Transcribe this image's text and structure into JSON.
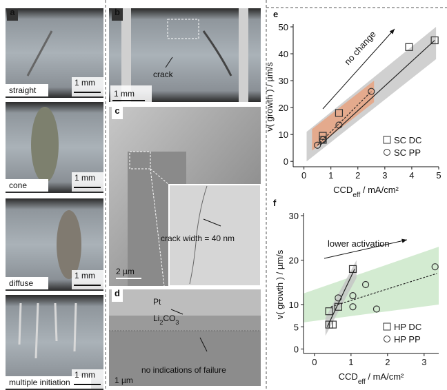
{
  "panels": {
    "a": {
      "label": "a",
      "images": [
        {
          "caption": "straight",
          "scale": "1 mm"
        },
        {
          "caption": "cone",
          "scale": "1 mm"
        },
        {
          "caption": "diffuse",
          "scale": "1 mm"
        },
        {
          "caption": "multiple initiation",
          "scale": "1 mm"
        }
      ]
    },
    "b": {
      "label": "b",
      "crack": "crack",
      "scale": "1 mm"
    },
    "c": {
      "label": "c",
      "annotation": "crack width = 40 nm",
      "scale": "2 µm"
    },
    "d": {
      "label": "d",
      "pt": "Pt",
      "li2co3": [
        "Li",
        "2",
        "CO",
        "3"
      ],
      "annotation": "no indications of failure",
      "scale": "1 µm"
    }
  },
  "chart_data": [
    {
      "type": "scatter",
      "panel_label": "e",
      "ylabel": "v( growth ) / µm/s",
      "xlabel": [
        "CCD",
        "eff",
        " / mA/cm²"
      ],
      "annotation": "no change",
      "legend": "lower right",
      "xlim": [
        -0.4,
        5
      ],
      "xticks": [
        0,
        1,
        2,
        3,
        4,
        5
      ],
      "ylim": [
        -2,
        50
      ],
      "yticks": [
        0,
        10,
        20,
        30,
        40,
        50
      ],
      "bands": [
        {
          "color": "#c4c4c4",
          "x": [
            0.1,
            4.9
          ],
          "lower": [
            0,
            38
          ],
          "upper": [
            11,
            50
          ]
        },
        {
          "color": "#e8a07c",
          "x": [
            0.3,
            2.6
          ],
          "lower": [
            4,
            22
          ],
          "upper": [
            12,
            30
          ]
        }
      ],
      "series": [
        {
          "name": "SC DC",
          "marker": "square",
          "color": "#333333",
          "x": [
            0.7,
            0.7,
            1.3,
            3.9,
            4.85
          ],
          "values": [
            8,
            9.5,
            18,
            42.5,
            45
          ]
        },
        {
          "name": "SC PP",
          "marker": "circle",
          "color": "#333333",
          "x": [
            0.5,
            0.7,
            1.3,
            2.5
          ],
          "values": [
            6,
            8,
            13.5,
            26
          ]
        },
        {
          "line_style": "solid",
          "color": "#222222",
          "x": [
            0.6,
            4.85
          ],
          "values": [
            6,
            45
          ]
        },
        {
          "line_style": "dotted",
          "color": "#222222",
          "x": [
            0.5,
            2.5
          ],
          "values": [
            6,
            26
          ]
        }
      ]
    },
    {
      "type": "scatter",
      "panel_label": "f",
      "ylabel": "v( growth ) / µm/s",
      "xlabel": [
        "CCD",
        "eff",
        " / mA/cm²"
      ],
      "annotation": "lower activation",
      "legend": "lower right",
      "xlim": [
        -0.3,
        3.4
      ],
      "xticks": [
        0,
        1,
        2,
        3
      ],
      "ylim": [
        -1,
        30
      ],
      "yticks": [
        0,
        5,
        10,
        20,
        30
      ],
      "bands": [
        {
          "color": "#c8e6c6",
          "x": [
            -0.3,
            3.4
          ],
          "lower": [
            6,
            10
          ],
          "upper": [
            12.5,
            23
          ]
        },
        {
          "color": "#c4c4c4",
          "x": [
            0.3,
            1.15
          ],
          "lower": [
            3,
            16
          ],
          "upper": [
            7,
            20
          ]
        }
      ],
      "series": [
        {
          "name": "HP DC",
          "marker": "square",
          "color": "#333333",
          "x": [
            0.4,
            0.5,
            0.4,
            0.65,
            1.05
          ],
          "values": [
            5.5,
            5.5,
            8.5,
            9.5,
            18
          ]
        },
        {
          "name": "HP PP",
          "marker": "circle",
          "color": "#333333",
          "x": [
            0.65,
            1.05,
            1.05,
            1.4,
            1.7,
            3.3
          ],
          "values": [
            11.5,
            9.5,
            12,
            14.5,
            9,
            18.5
          ]
        },
        {
          "line_style": "solid",
          "color": "#222222",
          "x": [
            0.35,
            1.1
          ],
          "values": [
            5,
            18
          ]
        },
        {
          "line_style": "dotted",
          "color": "#222222",
          "x": [
            0.45,
            3.35
          ],
          "values": [
            9.5,
            17
          ]
        }
      ]
    }
  ]
}
